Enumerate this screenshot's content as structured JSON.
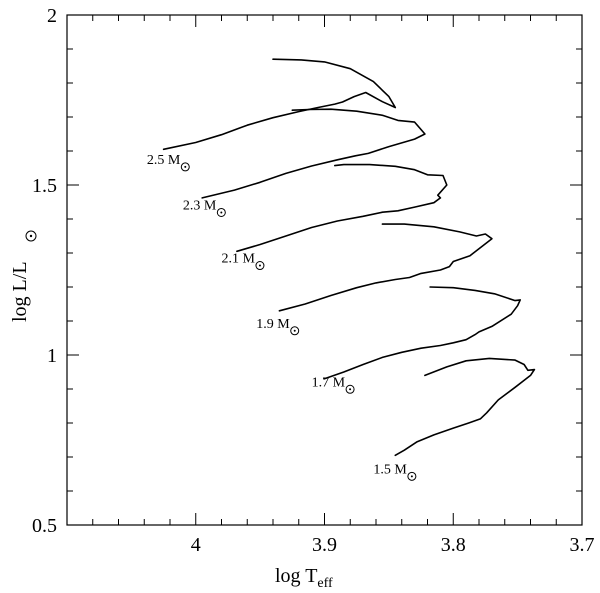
{
  "chart_data": {
    "type": "line",
    "title": "",
    "xlabel": {
      "main": "log T",
      "sub": "eff"
    },
    "ylabel": {
      "main": "log L/L",
      "sun_symbol": true
    },
    "xlim": [
      4.1,
      3.7
    ],
    "ylim": [
      0.5,
      2.0
    ],
    "x_reversed": true,
    "xticks": [
      {
        "value": 4.0,
        "label": "4"
      },
      {
        "value": 3.9,
        "label": "3.9"
      },
      {
        "value": 3.8,
        "label": "3.8"
      },
      {
        "value": 3.7,
        "label": "3.7"
      }
    ],
    "yticks": [
      {
        "value": 0.5,
        "label": "0.5"
      },
      {
        "value": 1.0,
        "label": "1"
      },
      {
        "value": 1.5,
        "label": "1.5"
      },
      {
        "value": 2.0,
        "label": "2"
      }
    ],
    "grid": false,
    "series": [
      {
        "name": "2.5",
        "unit": "M",
        "label_at": [
          4.038,
          1.562
        ],
        "points": [
          [
            4.025,
            1.605
          ],
          [
            4.0,
            1.625
          ],
          [
            3.98,
            1.648
          ],
          [
            3.96,
            1.676
          ],
          [
            3.94,
            1.698
          ],
          [
            3.92,
            1.716
          ],
          [
            3.905,
            1.728
          ],
          [
            3.892,
            1.738
          ],
          [
            3.886,
            1.744
          ],
          [
            3.877,
            1.76
          ],
          [
            3.868,
            1.772
          ],
          [
            3.855,
            1.745
          ],
          [
            3.845,
            1.728
          ],
          [
            3.85,
            1.76
          ],
          [
            3.862,
            1.804
          ],
          [
            3.88,
            1.842
          ],
          [
            3.9,
            1.862
          ],
          [
            3.918,
            1.868
          ],
          [
            3.94,
            1.87
          ]
        ]
      },
      {
        "name": "2.3",
        "unit": "M",
        "label_at": [
          4.01,
          1.428
        ],
        "points": [
          [
            3.995,
            1.462
          ],
          [
            3.97,
            1.485
          ],
          [
            3.95,
            1.508
          ],
          [
            3.93,
            1.534
          ],
          [
            3.91,
            1.556
          ],
          [
            3.89,
            1.574
          ],
          [
            3.876,
            1.586
          ],
          [
            3.866,
            1.593
          ],
          [
            3.85,
            1.613
          ],
          [
            3.83,
            1.635
          ],
          [
            3.822,
            1.65
          ],
          [
            3.83,
            1.685
          ],
          [
            3.843,
            1.69
          ],
          [
            3.855,
            1.705
          ],
          [
            3.875,
            1.717
          ],
          [
            3.895,
            1.723
          ],
          [
            3.912,
            1.722
          ],
          [
            3.925,
            1.72
          ]
        ]
      },
      {
        "name": "2.1",
        "unit": "M",
        "label_at": [
          3.98,
          1.272
        ],
        "points": [
          [
            3.968,
            1.305
          ],
          [
            3.95,
            1.325
          ],
          [
            3.93,
            1.35
          ],
          [
            3.91,
            1.375
          ],
          [
            3.89,
            1.394
          ],
          [
            3.87,
            1.408
          ],
          [
            3.855,
            1.42
          ],
          [
            3.843,
            1.424
          ],
          [
            3.83,
            1.435
          ],
          [
            3.815,
            1.448
          ],
          [
            3.81,
            1.462
          ],
          [
            3.812,
            1.47
          ],
          [
            3.805,
            1.5
          ],
          [
            3.808,
            1.528
          ],
          [
            3.82,
            1.53
          ],
          [
            3.83,
            1.545
          ],
          [
            3.845,
            1.555
          ],
          [
            3.865,
            1.56
          ],
          [
            3.885,
            1.56
          ],
          [
            3.892,
            1.557
          ]
        ]
      },
      {
        "name": "1.9",
        "unit": "M",
        "label_at": [
          3.953,
          1.08
        ],
        "points": [
          [
            3.935,
            1.13
          ],
          [
            3.915,
            1.15
          ],
          [
            3.895,
            1.175
          ],
          [
            3.875,
            1.198
          ],
          [
            3.86,
            1.212
          ],
          [
            3.845,
            1.222
          ],
          [
            3.834,
            1.228
          ],
          [
            3.825,
            1.24
          ],
          [
            3.81,
            1.25
          ],
          [
            3.803,
            1.26
          ],
          [
            3.8,
            1.275
          ],
          [
            3.787,
            1.292
          ],
          [
            3.77,
            1.342
          ],
          [
            3.775,
            1.356
          ],
          [
            3.782,
            1.35
          ],
          [
            3.795,
            1.362
          ],
          [
            3.815,
            1.377
          ],
          [
            3.838,
            1.385
          ],
          [
            3.855,
            1.385
          ]
        ]
      },
      {
        "name": "1.7",
        "unit": "M",
        "label_at": [
          3.91,
          0.908
        ],
        "points": [
          [
            3.9,
            0.93
          ],
          [
            3.885,
            0.95
          ],
          [
            3.87,
            0.972
          ],
          [
            3.855,
            0.993
          ],
          [
            3.84,
            1.008
          ],
          [
            3.825,
            1.02
          ],
          [
            3.81,
            1.028
          ],
          [
            3.8,
            1.036
          ],
          [
            3.79,
            1.045
          ],
          [
            3.783,
            1.06
          ],
          [
            3.78,
            1.068
          ],
          [
            3.77,
            1.084
          ],
          [
            3.755,
            1.12
          ],
          [
            3.75,
            1.145
          ],
          [
            3.748,
            1.162
          ],
          [
            3.752,
            1.16
          ],
          [
            3.768,
            1.18
          ],
          [
            3.783,
            1.19
          ],
          [
            3.8,
            1.198
          ],
          [
            3.818,
            1.2
          ]
        ]
      },
      {
        "name": "1.5",
        "unit": "M",
        "label_at": [
          3.862,
          0.652
        ],
        "points": [
          [
            3.845,
            0.705
          ],
          [
            3.838,
            0.72
          ],
          [
            3.828,
            0.745
          ],
          [
            3.815,
            0.765
          ],
          [
            3.8,
            0.785
          ],
          [
            3.788,
            0.8
          ],
          [
            3.779,
            0.812
          ],
          [
            3.774,
            0.83
          ],
          [
            3.765,
            0.868
          ],
          [
            3.752,
            0.905
          ],
          [
            3.74,
            0.94
          ],
          [
            3.737,
            0.957
          ],
          [
            3.742,
            0.955
          ],
          [
            3.745,
            0.972
          ],
          [
            3.752,
            0.985
          ],
          [
            3.772,
            0.99
          ],
          [
            3.79,
            0.983
          ],
          [
            3.805,
            0.965
          ],
          [
            3.822,
            0.94
          ]
        ]
      }
    ]
  }
}
